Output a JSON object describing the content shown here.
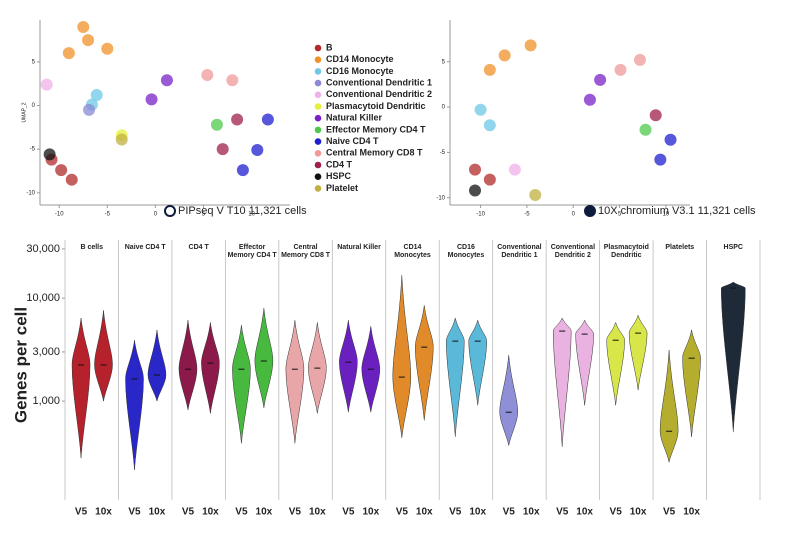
{
  "chart_data": [
    {
      "type": "scatter",
      "ylabel": "UMAP_2",
      "annotation": "PIPseq V T10 11,321 cells",
      "xlim": [
        -12,
        14
      ],
      "ylim": [
        -11.4,
        9.8
      ],
      "xticks": [
        -10,
        -5,
        0,
        5,
        10
      ],
      "yticks": [
        5,
        0,
        -5,
        -10
      ],
      "series": [
        {
          "name": "B",
          "color": "#b22b2b",
          "x": [
            -9.8,
            -8.7,
            -10.8
          ],
          "y": [
            -7.4,
            -8.5,
            -6.2
          ]
        },
        {
          "name": "CD14 Monocyte",
          "color": "#f0912a",
          "x": [
            -7,
            -9,
            -5,
            -7.5
          ],
          "y": [
            7.5,
            6,
            6.5,
            9
          ]
        },
        {
          "name": "CD16 Monocyte",
          "color": "#6ec8e8",
          "x": [
            -6.1,
            -6.6
          ],
          "y": [
            1.2,
            0.1
          ]
        },
        {
          "name": "Conventional Dendritic 1",
          "color": "#8a8ad6",
          "x": [
            -6.9
          ],
          "y": [
            -0.5
          ]
        },
        {
          "name": "Conventional Dendritic 2",
          "color": "#f0b0e8",
          "x": [
            -11.3
          ],
          "y": [
            2.4
          ]
        },
        {
          "name": "Plasmacytoid Dendritic",
          "color": "#e5f03c",
          "x": [
            -3.5
          ],
          "y": [
            -3.4
          ]
        },
        {
          "name": "Natural Killer",
          "color": "#7a22c8",
          "x": [
            1.2,
            -0.4
          ],
          "y": [
            2.9,
            0.7
          ]
        },
        {
          "name": "Effector Memory CD4 T",
          "color": "#4fc94a",
          "x": [
            6.4
          ],
          "y": [
            -2.2
          ]
        },
        {
          "name": "Naive CD4 T",
          "color": "#1f1fd0",
          "x": [
            10.6,
            9.1,
            11.7
          ],
          "y": [
            -5.1,
            -7.4,
            -1.6
          ]
        },
        {
          "name": "Central Memory CD8 T",
          "color": "#f09a9a",
          "x": [
            5.4,
            8.0
          ],
          "y": [
            3.5,
            2.9
          ]
        },
        {
          "name": "CD4 T",
          "color": "#a0204a",
          "x": [
            8.5,
            7
          ],
          "y": [
            -1.6,
            -5
          ]
        },
        {
          "name": "HSPC",
          "color": "#111111",
          "x": [
            -11
          ],
          "y": [
            -5.6
          ]
        },
        {
          "name": "Platelet",
          "color": "#c0b040",
          "x": [
            -3.5
          ],
          "y": [
            -3.9
          ]
        }
      ]
    },
    {
      "type": "scatter",
      "annotation": "10X chromium V3.1 11,321 cells",
      "xlim": [
        -13.3,
        12.6
      ],
      "ylim": [
        -10.8,
        9.6
      ],
      "xticks": [
        -10,
        -5,
        0,
        5,
        10
      ],
      "yticks": [
        5,
        0,
        -5,
        -10
      ],
      "series": [
        {
          "color": "#b22b2b",
          "x": [
            -9,
            -10.6
          ],
          "y": [
            -8,
            -6.9
          ]
        },
        {
          "color": "#f0912a",
          "x": [
            -7.4,
            -4.6,
            -9
          ],
          "y": [
            5.7,
            6.8,
            4.1
          ]
        },
        {
          "color": "#6ec8e8",
          "x": [
            -10,
            -9
          ],
          "y": [
            -0.3,
            -2
          ]
        },
        {
          "color": "#f0b0e8",
          "x": [
            -6.3
          ],
          "y": [
            -6.9
          ]
        },
        {
          "color": "#7a22c8",
          "x": [
            1.8,
            2.9
          ],
          "y": [
            0.8,
            3
          ]
        },
        {
          "color": "#4fc94a",
          "x": [
            7.8
          ],
          "y": [
            -2.5
          ]
        },
        {
          "color": "#1f1fd0",
          "x": [
            10.5,
            9.4
          ],
          "y": [
            -3.6,
            -5.8
          ]
        },
        {
          "color": "#f09a9a",
          "x": [
            5.1,
            7.2
          ],
          "y": [
            4.1,
            5.2
          ]
        },
        {
          "color": "#a0204a",
          "x": [
            8.9
          ],
          "y": [
            -0.9
          ]
        },
        {
          "color": "#111111",
          "x": [
            -10.6
          ],
          "y": [
            -9.2
          ]
        },
        {
          "color": "#c0b040",
          "x": [
            -4.1
          ],
          "y": [
            -9.7
          ]
        }
      ]
    },
    {
      "type": "violin",
      "ylabel": "Genes per cell",
      "log_scale": true,
      "ylim": [
        150,
        35000
      ],
      "yticks": [
        {
          "value": 1000,
          "label": "1,000"
        },
        {
          "value": 3000,
          "label": "3,000"
        },
        {
          "value": 10000,
          "label": "10,000"
        },
        {
          "value": 30000,
          "label": "30,000"
        }
      ],
      "groups": [
        {
          "name": "B cells",
          "color": "#b5222b",
          "categories": [
            "V5",
            "10x"
          ],
          "median": [
            2240,
            2240
          ],
          "min": [
            280,
            1000
          ],
          "max": [
            6400,
            7600
          ]
        },
        {
          "name": "Naive CD4 T",
          "color": "#2a27c9",
          "categories": [
            "V5",
            "10x"
          ],
          "median": [
            1640,
            1790
          ],
          "min": [
            215,
            1000
          ],
          "max": [
            3900,
            4900
          ]
        },
        {
          "name": "CD4 T",
          "color": "#8b1a4a",
          "categories": [
            "V5",
            "10x"
          ],
          "median": [
            2040,
            2340
          ],
          "min": [
            820,
            760
          ],
          "max": [
            6100,
            5800
          ]
        },
        {
          "name": "Effector Memory CD4 T",
          "color": "#47b93f",
          "categories": [
            "V5",
            "10x"
          ],
          "median": [
            2040,
            2450
          ],
          "min": [
            390,
            860
          ],
          "max": [
            5460,
            8000
          ]
        },
        {
          "name": "Central Memory CD8 T",
          "color": "#e8a6a8",
          "categories": [
            "V5",
            "10x"
          ],
          "median": [
            2040,
            2090
          ],
          "min": [
            390,
            760
          ],
          "max": [
            6100,
            5800
          ]
        },
        {
          "name": "Natural Killer",
          "color": "#6a1fbf",
          "categories": [
            "V5",
            "10x"
          ],
          "median": [
            2390,
            2040
          ],
          "min": [
            780,
            780
          ],
          "max": [
            6100,
            5340
          ]
        },
        {
          "name": "CD14 Monocytes",
          "color": "#e08a2a",
          "categories": [
            "V5",
            "10x"
          ],
          "median": [
            1710,
            3340
          ],
          "min": [
            440,
            650
          ],
          "max": [
            16700,
            8500
          ]
        },
        {
          "name": "CD16 Monocytes",
          "color": "#5ab9d9",
          "categories": [
            "V5",
            "10x"
          ],
          "median": [
            3820,
            3820
          ],
          "min": [
            450,
            910
          ],
          "max": [
            6400,
            6100
          ]
        },
        {
          "name": "Conventional Dendritic 1",
          "color": "#8f8fd8",
          "categories": [
            "V5",
            "10x"
          ],
          "median": [
            780,
            null
          ],
          "min": [
            370,
            null
          ],
          "max": [
            2800,
            null
          ]
        },
        {
          "name": "Conventional Dendritic 2",
          "color": "#e9b2e0",
          "categories": [
            "V5",
            "10x"
          ],
          "median": [
            4780,
            4470
          ],
          "min": [
            360,
            910
          ],
          "max": [
            6400,
            6100
          ]
        },
        {
          "name": "Plasmacytoid Dendritic",
          "color": "#d9e64a",
          "categories": [
            "V5",
            "10x"
          ],
          "median": [
            3900,
            4570
          ],
          "min": [
            910,
            1280
          ],
          "max": [
            5800,
            6800
          ]
        },
        {
          "name": "Platelets",
          "color": "#b5ad2e",
          "categories": [
            "V5",
            "10x"
          ],
          "median": [
            510,
            2610
          ],
          "min": [
            255,
            450
          ],
          "max": [
            3130,
            4900
          ]
        },
        {
          "name": "HSPC",
          "color": "#1e2a38",
          "categories": [
            null
          ],
          "median": [
            12500
          ],
          "min": [
            500
          ],
          "max": [
            14300
          ]
        }
      ]
    }
  ]
}
